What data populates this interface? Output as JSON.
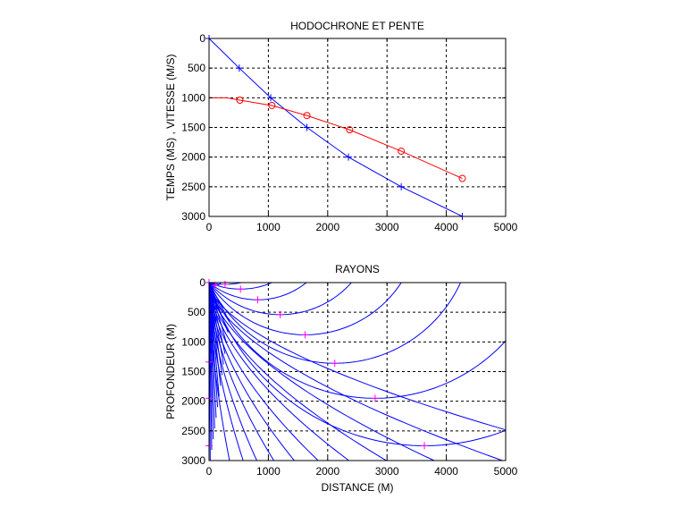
{
  "chart_data": [
    {
      "type": "line",
      "title": "HODOCHRONE ET PENTE",
      "xlabel": "",
      "ylabel": "TEMPS (MS) , VITESSE (M/S)",
      "xlim": [
        0,
        5000
      ],
      "ylim": [
        0,
        3000
      ],
      "y_reversed": true,
      "grid": true,
      "xticks": [
        0,
        1000,
        2000,
        3000,
        4000,
        5000
      ],
      "yticks": [
        0,
        500,
        1000,
        1500,
        2000,
        2500,
        3000
      ],
      "series": [
        {
          "color": "#0000ff",
          "marker": "plus",
          "x": [
            0,
            510,
            1040,
            1650,
            2350,
            3240,
            4270
          ],
          "y": [
            0,
            500,
            1000,
            1500,
            2000,
            2500,
            3000
          ]
        },
        {
          "color": "#ff0000",
          "marker": "circle",
          "x": [
            0,
            300,
            520,
            1060,
            1650,
            2370,
            3240,
            4270
          ],
          "y": [
            1000,
            1000,
            1040,
            1130,
            1300,
            1540,
            1900,
            2360
          ],
          "marker_indices": [
            2,
            3,
            4,
            5,
            6,
            7
          ]
        }
      ]
    },
    {
      "type": "line",
      "title": "RAYONS",
      "xlabel": "DISTANCE (M)",
      "ylabel": "PROFONDEUR (M)",
      "xlim": [
        0,
        5000
      ],
      "ylim": [
        0,
        3000
      ],
      "y_reversed": true,
      "grid": true,
      "xticks": [
        0,
        1000,
        2000,
        3000,
        4000,
        5000
      ],
      "yticks": [
        0,
        500,
        1000,
        1500,
        2000,
        2500,
        3000
      ],
      "ray_color": "#0000ff",
      "marker_color": "#ff00ff",
      "ray_velocity_ratio": 2,
      "turning_points": [
        {
          "x": 0,
          "y": 0
        },
        {
          "x": 100,
          "y": 50
        },
        {
          "x": 270,
          "y": 30
        },
        {
          "x": 530,
          "y": 110
        },
        {
          "x": 820,
          "y": 290
        },
        {
          "x": 1200,
          "y": 540
        },
        {
          "x": 1620,
          "y": 880
        },
        {
          "x": 2120,
          "y": 1360
        },
        {
          "x": 2800,
          "y": 1950
        },
        {
          "x": 3630,
          "y": 2750
        },
        {
          "x": 0,
          "y": 1340
        },
        {
          "x": 0,
          "y": 1950
        },
        {
          "x": 0,
          "y": 2750
        }
      ]
    }
  ]
}
